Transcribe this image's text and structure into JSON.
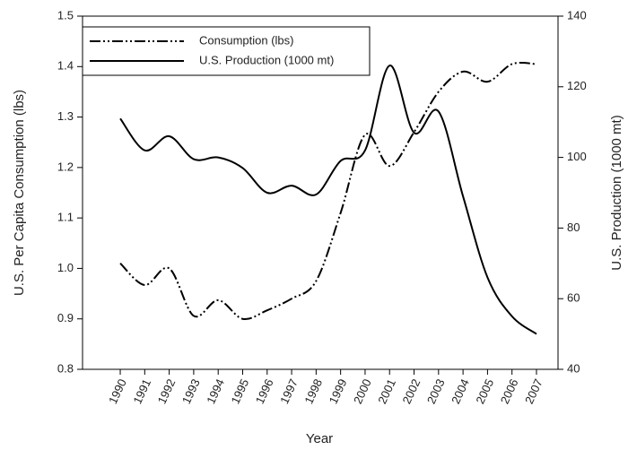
{
  "chart_data": {
    "type": "line",
    "xlabel": "Year",
    "ylabel": "U.S. Per Capita Consumption (lbs)",
    "y2label": "U.S. Production (1000 mt)",
    "x": [
      1990,
      1991,
      1992,
      1993,
      1994,
      1995,
      1996,
      1997,
      1998,
      1999,
      2000,
      2001,
      2002,
      2003,
      2004,
      2005,
      2006,
      2007
    ],
    "xlim": [
      1988.46,
      2007.88
    ],
    "xticks": [
      1990,
      1991,
      1992,
      1993,
      1994,
      1995,
      1996,
      1997,
      1998,
      1999,
      2000,
      2001,
      2002,
      2003,
      2004,
      2005,
      2006,
      2007
    ],
    "ylim": [
      0.8,
      1.5
    ],
    "yticks": [
      0.8,
      0.9,
      {
        "value": 1,
        "label": "1.0"
      },
      1.1,
      1.2,
      1.3,
      1.4,
      1.5
    ],
    "y2lim": [
      40,
      140
    ],
    "y2ticks": [
      40,
      60,
      80,
      100,
      120,
      140
    ],
    "legend": "upper left",
    "series": [
      {
        "name": "Consumption (lbs)",
        "color": "#000000",
        "dash": "dash-dot-dot",
        "values": [
          1.01,
          0.967,
          1.0,
          0.906,
          0.937,
          0.9,
          0.917,
          0.94,
          0.975,
          1.11,
          1.265,
          1.203,
          1.27,
          1.35,
          1.39,
          1.37,
          1.405,
          1.405
        ]
      },
      {
        "name": "U.S. Production (1000 mt)",
        "color": "#000000",
        "dash": "solid",
        "axis": "y2",
        "values": [
          111,
          102,
          106,
          99.5,
          100,
          97,
          90,
          92,
          89.5,
          99,
          102,
          126,
          107,
          113,
          89,
          66,
          55,
          50
        ]
      }
    ]
  }
}
